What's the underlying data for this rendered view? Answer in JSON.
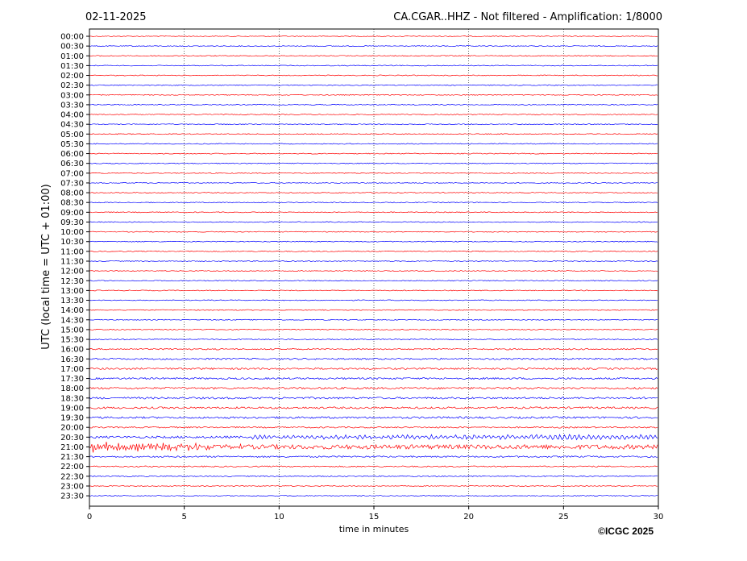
{
  "header": {
    "date": "02-11-2025",
    "title": "CA.CGAR..HHZ - Not filtered - Amplification: 1/8000"
  },
  "copyright": "©ICGC 2025",
  "chart_data": {
    "type": "line",
    "title": "CA.CGAR..HHZ - Not filtered - Amplification: 1/8000",
    "xlabel": "time in minutes",
    "ylabel": "UTC (local time = UTC + 01:00)",
    "xlim": [
      0,
      30
    ],
    "x_ticks": [
      "0",
      "5",
      "10",
      "15",
      "20",
      "25",
      "30"
    ],
    "x_grid": "dotted vertical lines at 5-minute ticks",
    "rows": [
      "00:00",
      "00:30",
      "01:00",
      "01:30",
      "02:00",
      "02:30",
      "03:00",
      "03:30",
      "04:00",
      "04:30",
      "05:00",
      "05:30",
      "06:00",
      "06:30",
      "07:00",
      "07:30",
      "08:00",
      "08:30",
      "09:00",
      "09:30",
      "10:00",
      "10:30",
      "11:00",
      "11:30",
      "12:00",
      "12:30",
      "13:00",
      "13:30",
      "14:00",
      "14:30",
      "15:00",
      "15:30",
      "16:00",
      "16:30",
      "17:00",
      "17:30",
      "18:00",
      "18:30",
      "19:00",
      "19:30",
      "20:00",
      "20:30",
      "21:00",
      "21:30",
      "22:00",
      "22:30",
      "23:00",
      "23:30"
    ],
    "row_colors": [
      "#ff0000",
      "#0000ff"
    ],
    "relative_amplitude": [
      1,
      1,
      1,
      1,
      1,
      1,
      1,
      1,
      1,
      1,
      1,
      1,
      1,
      1,
      1,
      1,
      1,
      1,
      1,
      1,
      1,
      1,
      1,
      1,
      1,
      1,
      1,
      1,
      1,
      1,
      1,
      1.2,
      1.6,
      1.8,
      2,
      2,
      2.2,
      2.2,
      2.2,
      2.2,
      1.6,
      2.5,
      5,
      1.8,
      1.4,
      1.2,
      1,
      1
    ],
    "events": [
      {
        "row": "20:30",
        "x_start": 8,
        "x_end": 30,
        "note": "long-period oscillation"
      },
      {
        "row": "21:00",
        "x_start": 0,
        "x_end": 8,
        "note": "large oscillation"
      }
    ]
  }
}
